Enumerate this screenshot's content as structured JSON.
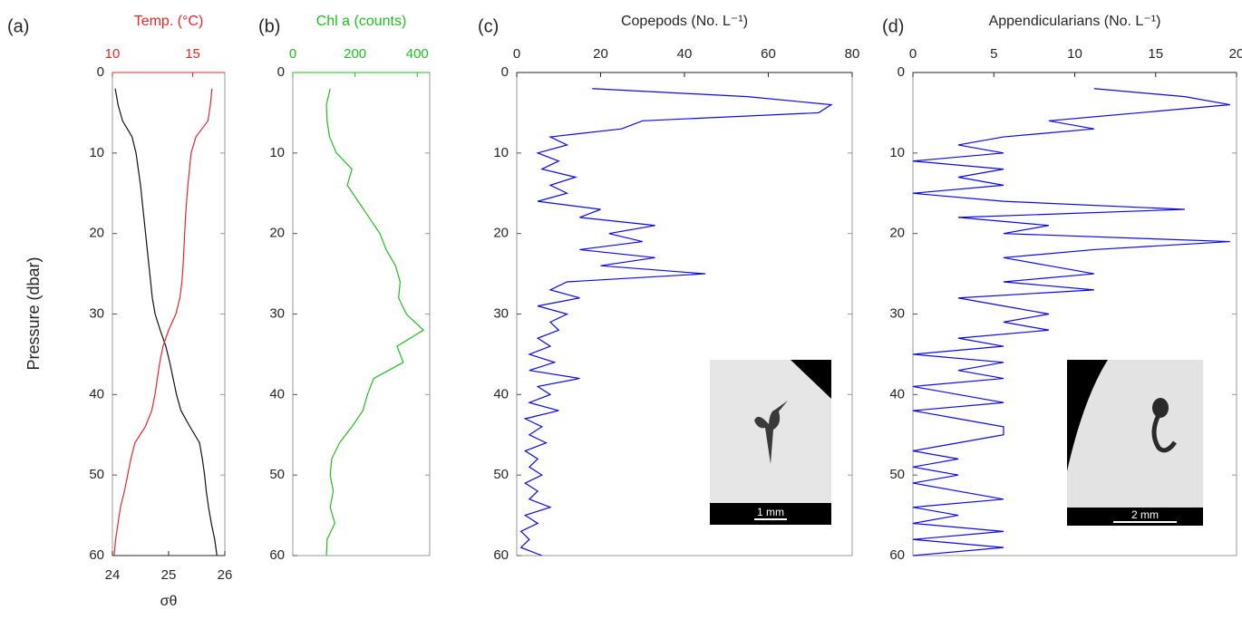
{
  "chart_data": [
    {
      "type": "profile",
      "panel_label": "(a)",
      "xlabel": "Pressure (dbar)",
      "x": [
        2,
        4,
        6,
        8,
        10,
        12,
        14,
        16,
        18,
        20,
        22,
        24,
        26,
        28,
        30,
        32,
        34,
        36,
        38,
        40,
        42,
        44,
        46,
        48,
        50,
        52,
        54,
        56,
        58,
        60
      ],
      "xlim": [
        0,
        60
      ],
      "xticks": [
        0,
        10,
        20,
        30,
        40,
        50,
        60
      ],
      "ylabel": "σθ",
      "ylim": [
        24,
        26
      ],
      "yticks": [
        24,
        25,
        26
      ],
      "yaxis_side": "bottom",
      "y2label": "Temp. (°C)",
      "y2lim": [
        10,
        17
      ],
      "y2ticks": [
        10,
        15
      ],
      "y2color": "#e8262a",
      "series": [
        {
          "name": "σθ",
          "color": "#111111",
          "values": [
            24.05,
            24.1,
            24.18,
            24.35,
            24.42,
            24.46,
            24.5,
            24.53,
            24.56,
            24.59,
            24.62,
            24.65,
            24.68,
            24.71,
            24.76,
            24.85,
            24.95,
            25.02,
            25.08,
            25.14,
            25.22,
            25.38,
            25.55,
            25.6,
            25.64,
            25.67,
            25.71,
            25.76,
            25.82,
            25.86
          ]
        },
        {
          "name": "Temp. (°C)",
          "color": "#e8262a",
          "axis": "y2",
          "values": [
            16.2,
            16.1,
            15.95,
            15.2,
            14.9,
            14.8,
            14.7,
            14.62,
            14.55,
            14.5,
            14.45,
            14.4,
            14.33,
            14.2,
            13.95,
            13.5,
            13.15,
            12.95,
            12.8,
            12.65,
            12.45,
            12.05,
            11.4,
            11.15,
            10.95,
            10.75,
            10.5,
            10.35,
            10.2,
            10.1
          ]
        }
      ]
    },
    {
      "type": "profile",
      "panel_label": "(b)",
      "x": [
        2,
        4,
        6,
        8,
        10,
        12,
        14,
        16,
        18,
        20,
        22,
        24,
        26,
        28,
        30,
        32,
        34,
        36,
        38,
        40,
        42,
        44,
        46,
        48,
        50,
        52,
        54,
        56,
        58,
        60
      ],
      "xlim": [
        0,
        60
      ],
      "xticks": [
        0,
        10,
        20,
        30,
        40,
        50,
        60
      ],
      "ylabel": "Chl a (counts)",
      "ylim": [
        0,
        440
      ],
      "yticks": [
        0,
        200,
        400
      ],
      "yaxis_side": "top",
      "ycolor": "#1fbf1f",
      "series": [
        {
          "name": "Chl a",
          "color": "#1fbf1f",
          "values": [
            120,
            108,
            110,
            118,
            140,
            190,
            175,
            210,
            245,
            280,
            300,
            330,
            345,
            340,
            365,
            420,
            335,
            355,
            260,
            240,
            225,
            190,
            150,
            125,
            120,
            130,
            120,
            135,
            110,
            108
          ]
        }
      ]
    },
    {
      "type": "profile",
      "panel_label": "(c)",
      "x": [
        2,
        3,
        4,
        5,
        6,
        7,
        8,
        9,
        10,
        11,
        12,
        13,
        14,
        15,
        16,
        17,
        18,
        19,
        20,
        21,
        22,
        23,
        24,
        25,
        26,
        27,
        28,
        29,
        30,
        31,
        32,
        33,
        34,
        35,
        36,
        37,
        38,
        39,
        40,
        41,
        42,
        43,
        44,
        45,
        46,
        47,
        48,
        49,
        50,
        51,
        52,
        53,
        54,
        55,
        56,
        57,
        58,
        59,
        60
      ],
      "xlim": [
        0,
        60
      ],
      "xticks": [
        0,
        10,
        20,
        30,
        40,
        50,
        60
      ],
      "ylabel": "Copepods (No. L⁻¹)",
      "ylim": [
        0,
        80
      ],
      "yticks": [
        0,
        20,
        40,
        60,
        80
      ],
      "yaxis_side": "top",
      "inset_scale_label": "1 mm",
      "series": [
        {
          "name": "Copepods",
          "color": "#0a0ae6",
          "values": [
            18,
            55,
            75,
            72,
            30,
            25,
            8,
            12,
            5,
            10,
            6,
            14,
            8,
            12,
            5,
            20,
            15,
            33,
            22,
            30,
            15,
            33,
            20,
            45,
            12,
            8,
            15,
            5,
            12,
            8,
            10,
            5,
            8,
            3,
            9,
            3,
            15,
            5,
            8,
            3,
            10,
            2,
            6,
            3,
            7,
            2,
            5,
            3,
            6,
            2,
            5,
            3,
            8,
            2,
            5,
            1,
            3,
            1,
            6
          ]
        }
      ]
    },
    {
      "type": "profile",
      "panel_label": "(d)",
      "x": [
        2,
        3,
        4,
        5,
        6,
        7,
        8,
        9,
        10,
        11,
        12,
        13,
        14,
        15,
        16,
        17,
        18,
        19,
        20,
        21,
        22,
        23,
        24,
        25,
        26,
        27,
        28,
        29,
        30,
        31,
        32,
        33,
        34,
        35,
        36,
        37,
        38,
        39,
        40,
        41,
        42,
        43,
        44,
        45,
        46,
        47,
        48,
        49,
        50,
        51,
        52,
        53,
        54,
        55,
        56,
        57,
        58,
        59,
        60
      ],
      "xlim": [
        0,
        60
      ],
      "xticks": [
        0,
        10,
        20,
        30,
        40,
        50,
        60
      ],
      "ylabel": "Appendicularians (No. L⁻¹)",
      "ylim": [
        0,
        20
      ],
      "yticks": [
        0,
        5,
        10,
        15,
        20
      ],
      "yaxis_side": "top",
      "inset_scale_label": "2 mm",
      "series": [
        {
          "name": "Appendicularians",
          "color": "#0a0ae6",
          "values": [
            11.2,
            16.8,
            19.6,
            14,
            8.4,
            11.2,
            5.6,
            2.8,
            5.6,
            0,
            5.6,
            2.8,
            5.6,
            0,
            5.6,
            16.8,
            2.8,
            8.4,
            5.6,
            19.6,
            11.2,
            5.6,
            8.4,
            11.2,
            5.6,
            11.2,
            2.8,
            5.6,
            8.4,
            5.6,
            8.4,
            2.8,
            5.6,
            0,
            5.6,
            2.8,
            5.6,
            0,
            2.8,
            5.6,
            0,
            2.8,
            5.6,
            5.6,
            2.8,
            0,
            2.8,
            0,
            2.8,
            0,
            2.8,
            5.6,
            0,
            2.8,
            0,
            5.6,
            0,
            5.6,
            0
          ]
        }
      ]
    }
  ]
}
